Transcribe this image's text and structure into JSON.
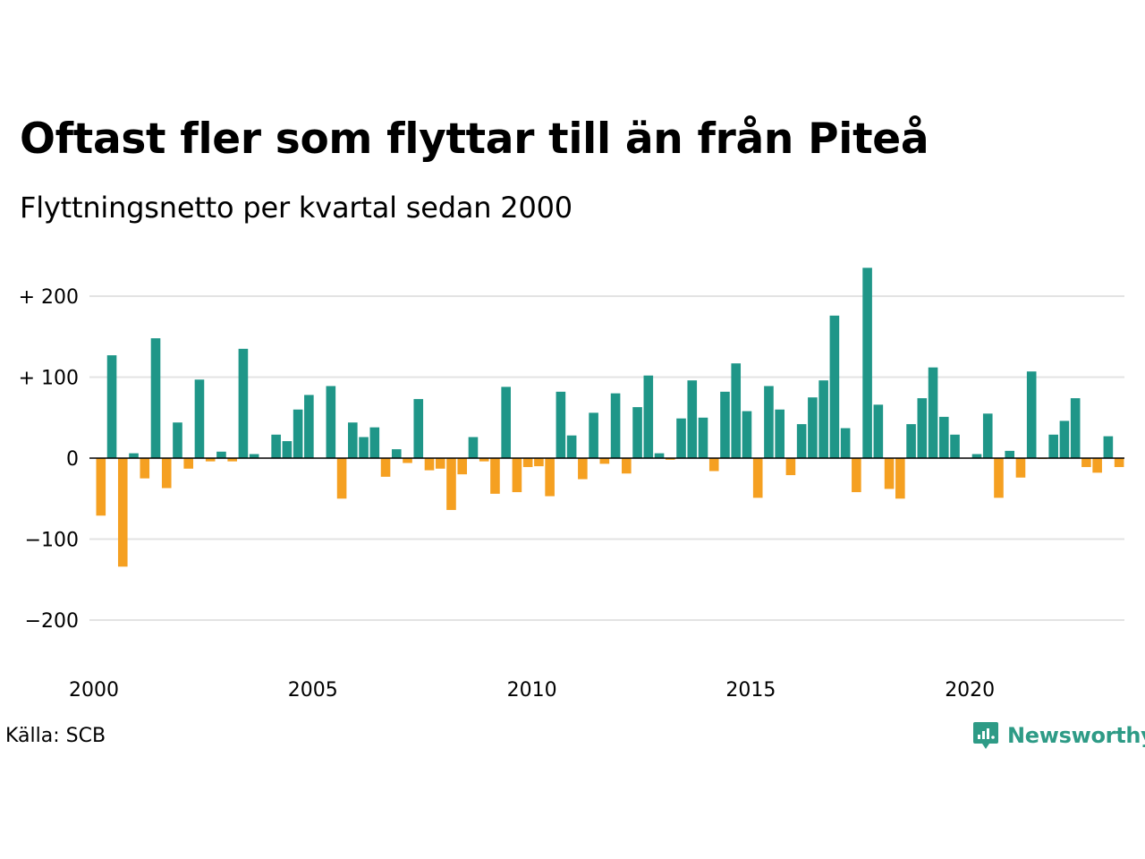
{
  "header": {
    "title": "Oftast fler som flyttar till än från Piteå",
    "subtitle": "Flyttningsnetto per kvartal sedan 2000"
  },
  "footer": {
    "source": "Källa: SCB",
    "brand": "Newsworthy"
  },
  "colors": {
    "positive": "#1f9688",
    "negative": "#f5a021",
    "grid": "#e3e3e3",
    "axis": "#000000",
    "brand": "#2e9b86"
  },
  "chart_data": {
    "type": "bar",
    "title": "Oftast fler som flyttar till än från Piteå",
    "subtitle": "Flyttningsnetto per kvartal sedan 2000",
    "xlabel": "",
    "ylabel": "",
    "ylim": [
      -240,
      240
    ],
    "y_ticks": [
      {
        "value": 200,
        "label": "+ 200"
      },
      {
        "value": 100,
        "label": "+ 100"
      },
      {
        "value": 0,
        "label": "0"
      },
      {
        "value": -100,
        "label": "−100"
      },
      {
        "value": -200,
        "label": "−200"
      }
    ],
    "x_ticks": [
      {
        "year": 2000,
        "label": "2000"
      },
      {
        "year": 2005,
        "label": "2005"
      },
      {
        "year": 2010,
        "label": "2010"
      },
      {
        "year": 2015,
        "label": "2015"
      },
      {
        "year": 2020,
        "label": "2020"
      }
    ],
    "grid": true,
    "legend": "none",
    "start_year": 2000,
    "periods_per_year": 4,
    "values": [
      -71,
      127,
      -134,
      6,
      -25,
      148,
      -37,
      44,
      -13,
      97,
      -4,
      8,
      -4,
      135,
      5,
      0,
      29,
      21,
      60,
      78,
      0,
      89,
      -50,
      44,
      26,
      38,
      -23,
      11,
      -6,
      73,
      -15,
      -13,
      -64,
      -20,
      26,
      -4,
      -44,
      88,
      -42,
      -11,
      -10,
      -47,
      82,
      28,
      -26,
      56,
      -7,
      80,
      -19,
      63,
      102,
      6,
      -2,
      49,
      96,
      50,
      -16,
      82,
      117,
      58,
      -49,
      89,
      60,
      -21,
      42,
      75,
      96,
      176,
      37,
      -42,
      235,
      66,
      -38,
      -50,
      42,
      74,
      112,
      51,
      29,
      0,
      5,
      55,
      -49,
      9,
      -24,
      107,
      -1,
      29,
      46,
      74,
      -11,
      -18,
      27,
      -11
    ]
  }
}
